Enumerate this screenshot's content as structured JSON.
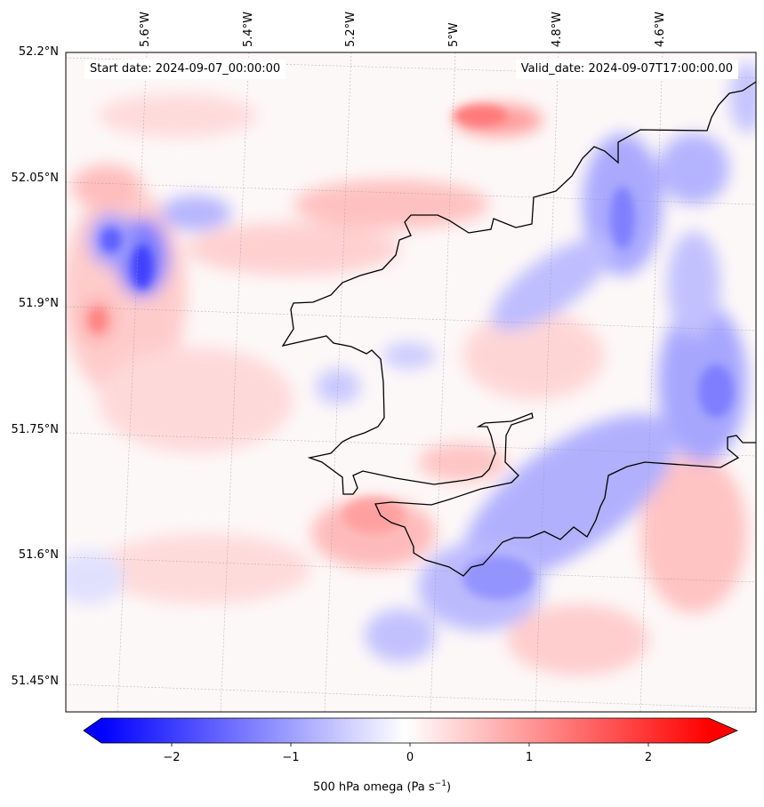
{
  "map": {
    "start_date": "Start date: 2024-09-07_00:00:00",
    "valid_date": "Valid_date: 2024-09-07T17:00:00.00",
    "lat_labels": [
      "52.2°N",
      "52.05°N",
      "51.9°N",
      "51.75°N",
      "51.6°N",
      "51.45°N"
    ],
    "lon_labels": [
      "5.6°W",
      "5.4°W",
      "5.2°W",
      "5°W",
      "4.8°W",
      "4.6°W"
    ],
    "coastline_color": "#000000",
    "field": "500 hPa omega"
  },
  "colorbar": {
    "ticks": [
      "−2",
      "−1",
      "0",
      "1",
      "2"
    ],
    "label": "500 hPa omega (Pa s",
    "label_exp": "−1",
    "label_close": ")",
    "range": [
      -2.5,
      2.5
    ],
    "extend": "both",
    "colormap": "bwr",
    "neg_color": "#0000ff",
    "zero_color": "#ffffff",
    "pos_color": "#ff0000"
  }
}
